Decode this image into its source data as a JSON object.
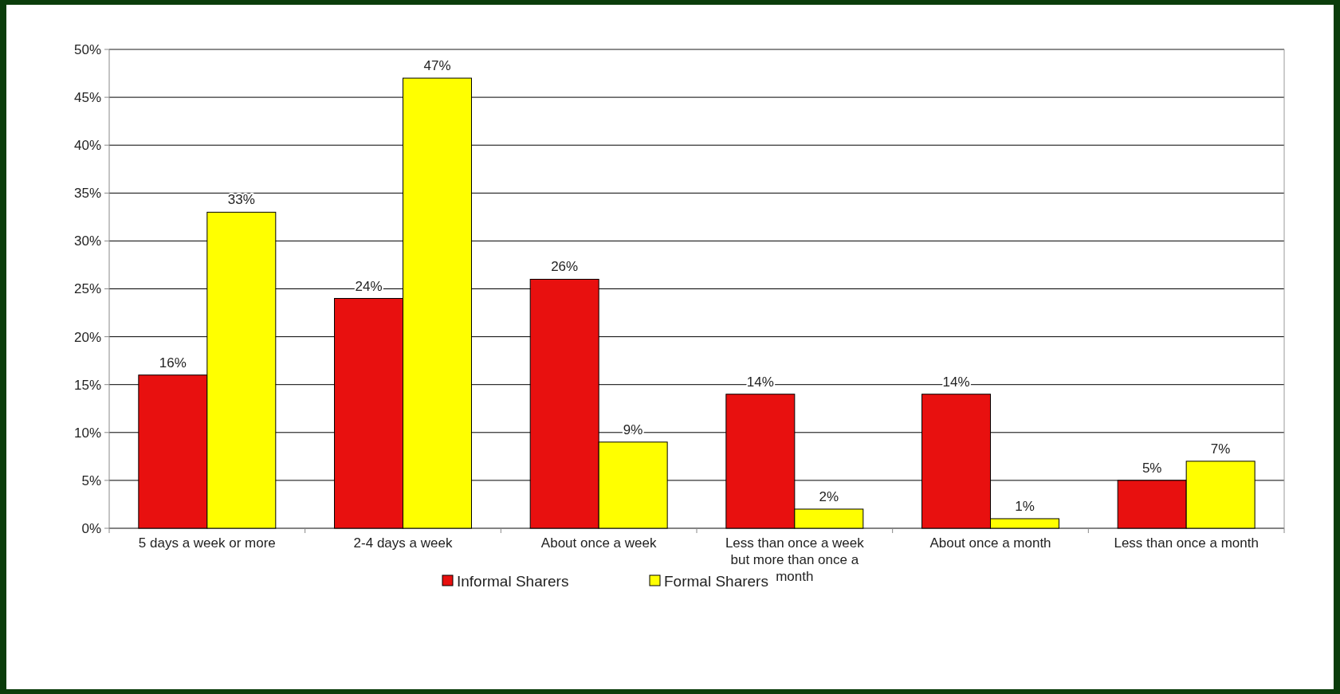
{
  "chart_data": {
    "type": "bar",
    "categories": [
      "5 days a week or more",
      "2-4 days a week",
      "About once a week",
      "Less than once a week but more than once a month",
      "About once a month",
      "Less than once a month"
    ],
    "series": [
      {
        "name": "Informal Sharers",
        "color": "#e8100f",
        "values": [
          16,
          24,
          26,
          14,
          14,
          5
        ],
        "value_labels": [
          "16%",
          "24%",
          "26%",
          "14%",
          "14%",
          "5%"
        ]
      },
      {
        "name": "Formal Sharers",
        "color": "#ffff00",
        "values": [
          33,
          47,
          9,
          2,
          1,
          7
        ],
        "value_labels": [
          "33%",
          "47%",
          "9%",
          "2%",
          "1%",
          "7%"
        ]
      }
    ],
    "ylim": [
      0,
      50
    ],
    "yticks": [
      {
        "value": 0,
        "label": "0%"
      },
      {
        "value": 5,
        "label": "5%"
      },
      {
        "value": 10,
        "label": "10%"
      },
      {
        "value": 15,
        "label": "15%"
      },
      {
        "value": 20,
        "label": "20%"
      },
      {
        "value": 25,
        "label": "25%"
      },
      {
        "value": 30,
        "label": "30%"
      },
      {
        "value": 35,
        "label": "35%"
      },
      {
        "value": 40,
        "label": "40%"
      },
      {
        "value": 45,
        "label": "45%"
      },
      {
        "value": 50,
        "label": "50%"
      }
    ],
    "grid": "y",
    "legend": "bottom"
  }
}
